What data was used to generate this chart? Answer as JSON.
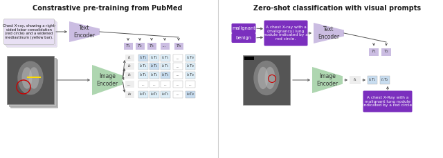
{
  "title_left": "Constrastive pre-training from PubMed",
  "title_right": "Zero-shot classification with visual prompts",
  "bg_color": "#ffffff",
  "lavender": "#cbbde2",
  "light_lavender": "#e8e0f4",
  "green": "#aed6b0",
  "blue_highlight": "#c8ddf0",
  "blue_cell": "#ddeef8",
  "purple": "#7B2FBE",
  "divider_color": "#cccccc",
  "text_color": "#1a1a1a",
  "arrow_color": "#555555",
  "xray_bg": "#707070",
  "tok_labels_left": [
    "$T_1$",
    "$T_2$",
    "$T_3$",
    "...",
    "$T_N$"
  ],
  "row_labels_left": [
    "$I_1$",
    "$I_2$",
    "$I_3$",
    "...",
    "$I_N$"
  ],
  "mat_labels": [
    [
      "$I_1T_1$",
      "$I_1T_2$",
      "$I_1T_3$",
      "...",
      "$I_1T_N$"
    ],
    [
      "$I_2T_1$",
      "$I_2T_2$",
      "$I_2T_3$",
      "...",
      "$I_2T_N$"
    ],
    [
      "$I_3T_1$",
      "$I_3T_2$",
      "$I_3T_3$",
      "...",
      "$I_3T_N$"
    ],
    [
      "...",
      "...",
      "...",
      "...",
      "..."
    ],
    [
      "$I_NT_1$",
      "$I_NT_2$",
      "$I_NT_3$",
      "...",
      "$I_NT_N$"
    ]
  ],
  "tok_labels_right": [
    "$T_1$",
    "$T_2$"
  ],
  "mat_labels_right": [
    "$I_1T_1$",
    "$I_1T_2$"
  ]
}
